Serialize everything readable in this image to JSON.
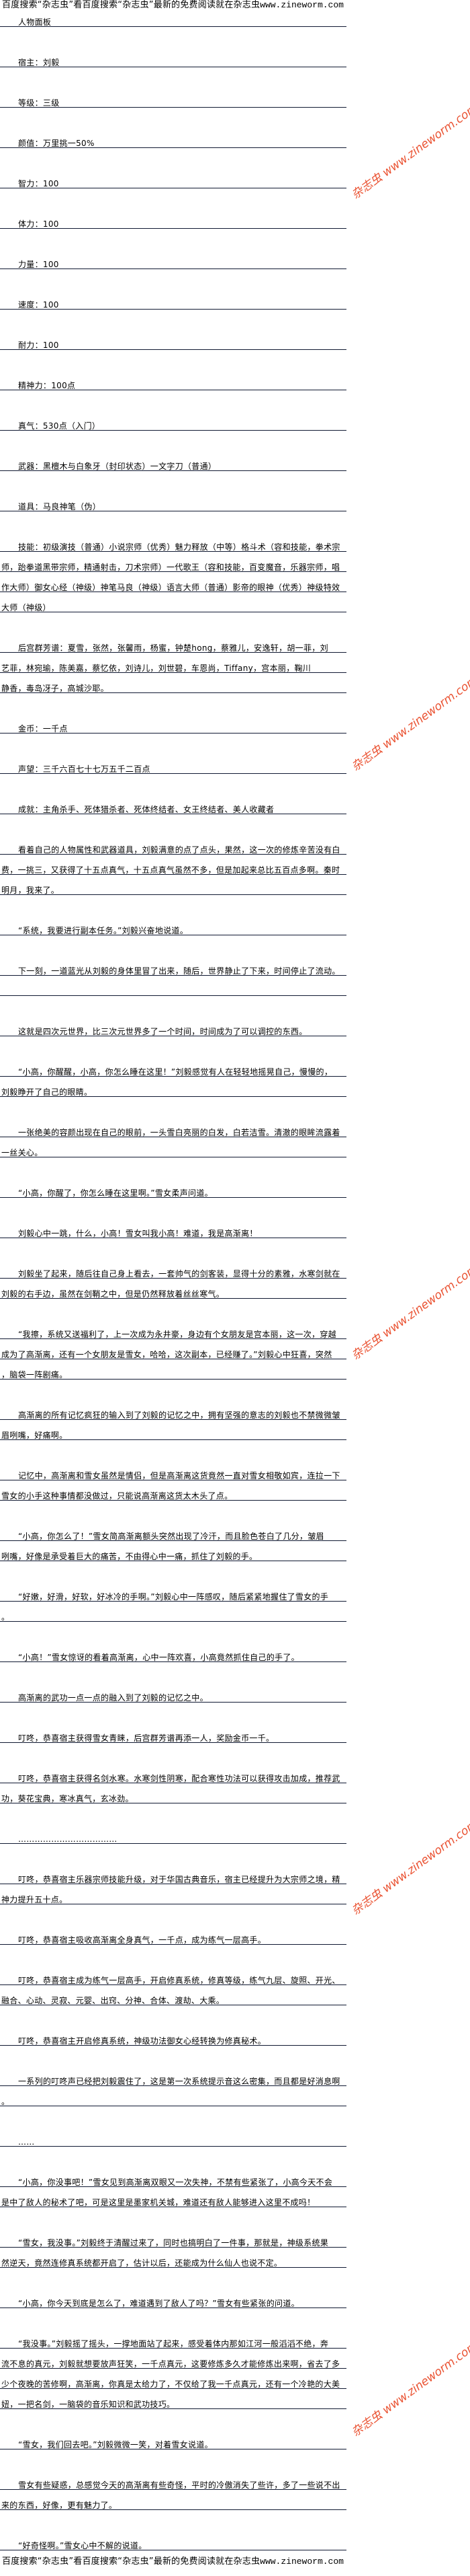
{
  "banner": {
    "text": "百度搜索“杂志虫”看百度搜索“杂志虫”最新的免费阅读就在杂志虫",
    "url": "www.zineworm.com"
  },
  "watermark": {
    "text": "杂志虫 www.zineworm.com",
    "color": "#e8401c"
  },
  "paragraphs": [
    {
      "lines": [
        "人物面板"
      ]
    },
    {
      "lines": [
        "宿主：刘毅"
      ]
    },
    {
      "lines": [
        "等级：三级"
      ]
    },
    {
      "lines": [
        "颜值：万里挑一50%"
      ]
    },
    {
      "lines": [
        "智力：100"
      ]
    },
    {
      "lines": [
        "体力：100"
      ]
    },
    {
      "lines": [
        "力量：100"
      ]
    },
    {
      "lines": [
        "速度：100"
      ]
    },
    {
      "lines": [
        "耐力：100"
      ]
    },
    {
      "lines": [
        "精神力：100点"
      ]
    },
    {
      "lines": [
        "真气：530点（入门）"
      ]
    },
    {
      "lines": [
        "武器：黑檀木与白象牙（封印状态）一文字刀（普通）"
      ]
    },
    {
      "lines": [
        "道具：马良神笔（伪）"
      ]
    },
    {
      "lines": [
        "技能：初级演技（普通）小说宗师（优秀）魅力释放（中等）格斗术（容和技能，拳术宗",
        "师，跆拳道黑带宗师，精通射击，刀术宗师）一代歌王（容和技能，百变魔音，乐器宗师，唱",
        "作大师）御女心经（神级）神笔马良（神级）语言大师（普通）影帝的眼神（优秀）神级特效",
        "大师（神级）"
      ]
    },
    {
      "lines": [
        "后宫群芳谱：夏雪，张然，张馨雨，杨蜜，钟楚hong，蔡雅儿，安逸轩，胡一菲，刘",
        "艺菲，林宛瑜，陈美嘉，蔡忆依，刘诗儿，刘世碧，车恩尚，Tiffany，宫本丽，鞠川",
        "静香，毒岛冴子，高城沙耶。"
      ]
    },
    {
      "lines": [
        "金币：一千点"
      ]
    },
    {
      "lines": [
        "声望：三千六百七十七万五千二百点"
      ]
    },
    {
      "lines": [
        "成就：主角杀手、死体猎杀者、死体终结者、女王终结者、美人收藏者"
      ]
    },
    {
      "lines": [
        "看着自己的人物属性和武器道具，刘毅满意的点了点头，果然，这一次的修炼辛苦没有白",
        "费，一挑三，又获得了十五点真气，十五点真气虽然不多，但是加起来总比五百点多啊。秦时",
        "明月，我来了。"
      ]
    },
    {
      "lines": [
        "“系统，我要进行副本任务。”刘毅兴奋地说道。"
      ]
    },
    {
      "lines": [
        "下一刻，一道蓝光从刘毅的身体里冒了出来，随后，世界静止了下来，时间停止了流动。",
        ""
      ]
    },
    {
      "lines": [
        "这就是四次元世界，比三次元世界多了一个时间，时间成为了可以调控的东西。"
      ]
    },
    {
      "lines": [
        "“小高，你醒醒，小高，你怎么睡在这里！”刘毅感觉有人在轻轻地摇晃自己，慢慢的，",
        "刘毅睁开了自己的眼睛。"
      ]
    },
    {
      "lines": [
        "一张绝美的容颜出现在自己的眼前，一头雪白亮丽的白发，白若洁雪。清澈的眼眸流露着",
        "一丝关心。"
      ]
    },
    {
      "lines": [
        "“小高，你醒了，你怎么睡在这里啊。”雪女柔声问道。"
      ]
    },
    {
      "lines": [
        "刘毅心中一跳，什么，小高！雪女叫我小高！难道，我是高渐离！"
      ]
    },
    {
      "lines": [
        "刘毅坐了起来，随后往自己身上看去，一套帅气的剑客装，显得十分的素雅，水寒剑就在",
        "刘毅的右手边，虽然在剑鞘之中，但是仍然释放着丝丝寒气。"
      ]
    },
    {
      "lines": [
        "“我擦，系统又送福利了，上一次成为永井豪，身边有个女朋友是宫本丽，这一次，穿越",
        "成为了高渐离，还有一个女朋友是雪女，哈哈，这次副本，已经赚了。”刘毅心中狂喜，突然",
        "，脑袋一阵剧痛。"
      ]
    },
    {
      "lines": [
        "高渐离的所有记忆疯狂的输入到了刘毅的记忆之中，拥有坚强的意志的刘毅也不禁微微皱",
        "眉咧嘴，好痛啊。"
      ]
    },
    {
      "lines": [
        "记忆中，高渐离和雪女虽然是情侣，但是高渐离这货竟然一直对雪女相敬如宾，连拉一下",
        "雪女的小手这种事情都没做过，只能说高渐离这货太木头了点。"
      ]
    },
    {
      "lines": [
        "“小高，你怎么了！”雪女简高渐离额头突然出现了冷汗，而且脸色苍白了几分，皱眉",
        "咧嘴，好像是承受着巨大的痛苦，不由得心中一痛，抓住了刘毅的手。"
      ]
    },
    {
      "lines": [
        "“好嫩，好滑，好软，好冰冷的手啊。”刘毅心中一阵感叹，随后紧紧地握住了雪女的手",
        "。"
      ]
    },
    {
      "lines": [
        "“小高！”雪女惊讶的看着高渐离，心中一阵欢喜，小高竟然抓住自己的手了。"
      ]
    },
    {
      "lines": [
        "高渐离的武功一点一点的融入到了刘毅的记忆之中。"
      ]
    },
    {
      "lines": [
        "叮咚，恭喜宿主获得雪女青睐，后宫群芳谱再添一人，奖励金币一千。"
      ]
    },
    {
      "lines": [
        "叮咚，恭喜宿主获得名剑水寒。水寒剑性阴寒，配合寒性功法可以获得攻击加成，推荐武",
        "功，葵花宝典，寒冰真气，玄冰劲。"
      ]
    },
    {
      "lines": [
        "………………………………"
      ]
    },
    {
      "lines": [
        "叮咚，恭喜宿主乐器宗师技能升级，对于华国古典音乐，宿主已经提升为大宗师之境，精",
        "神力提升五十点。"
      ]
    },
    {
      "lines": [
        "叮咚，恭喜宿主吸收高渐离全身真气，一千点，成为练气一层高手。"
      ]
    },
    {
      "lines": [
        "叮咚，恭喜宿主成为练气一层高手，开启修真系统，修真等级，练气九层、旋照、开光、",
        "融合、心动、灵寂、元婴、出窍、分神、合体、渡劫、大乘。"
      ]
    },
    {
      "lines": [
        "叮咚，恭喜宿主开启修真系统，神级功法御女心经转换为修真秘术。"
      ]
    },
    {
      "lines": [
        "一系列的叮咚声已经把刘毅震住了，这是第一次系统提示音这么密集，而且都是好消息啊",
        "。"
      ]
    },
    {
      "lines": [
        "……"
      ]
    },
    {
      "lines": [
        "“小高，你没事吧！”雪女见到高渐离双眼又一次失神，不禁有些紧张了，小高今天不会",
        "是中了敌人的秘术了吧，可是这里是墨家机关城，难道还有敌人能够进入这里不成吗！"
      ]
    },
    {
      "lines": [
        "“雪女，我没事。”刘毅终于清醒过来了，同时也搞明白了一件事，那就是，神级系统果",
        "然逆天，竟然连修真系统都开启了，估计以后，还能成为什么仙人也说不定。"
      ]
    },
    {
      "lines": [
        "“小高，你今天到底是怎么了，难道遇到了敌人了吗？”雪女有些紧张的问道。"
      ]
    },
    {
      "lines": [
        "“我没事。”刘毅摇了摇头，一撑地面站了起来，感受着体内那如江河一般滔滔不绝，奔",
        "流不息的真元，刘毅就想要放声狂笑，一千点真元，这要修炼多久才能修炼出来啊，省去了多",
        "少个夜晚的苦修啊，高渐离，你真是太给力了，不仅给了我一千点真元，还有一个冷艳的大美",
        "妞，一把名剑，一脑袋的音乐知识和武功技巧。"
      ]
    },
    {
      "lines": [
        "“雪女，我们回去吧。”刘毅微微一笑，对着雪女说道。"
      ]
    },
    {
      "lines": [
        "雪女有些疑惑，总感觉今天的高渐离有些奇怪，平时的冷傲消失了些许，多了一些说不出",
        "来的东西，好像，更有魅力了。"
      ]
    },
    {
      "lines": [
        "“好奇怪啊。”雪女心中不解的说道。"
      ]
    }
  ]
}
